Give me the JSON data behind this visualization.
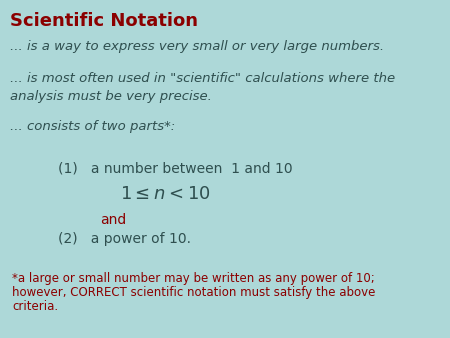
{
  "bg_color": "#add8d8",
  "title": "Scientific Notation",
  "title_color": "#8b0000",
  "title_fontsize": 13,
  "body_color": "#2f4f4f",
  "red_color": "#8b0000",
  "line1": "... is a way to express very small or very large numbers.",
  "line2a": "... is most often used in \"scientific\" calculations where the",
  "line2b": "analysis must be very precise.",
  "line3": "... consists of two parts*:",
  "item1": "(1)   a number between  1 and 10",
  "math_expr": "$1 \\leq n < 10$",
  "and_text": "and",
  "item2": "(2)   a power of 10.",
  "footnote1": "*a large or small number may be written as any power of 10;",
  "footnote2": "however, CORRECT scientific notation must satisfy the above",
  "footnote3": "criteria.",
  "body_fontsize": 9.5,
  "item_fontsize": 10,
  "math_fontsize": 13,
  "footnote_fontsize": 8.5
}
